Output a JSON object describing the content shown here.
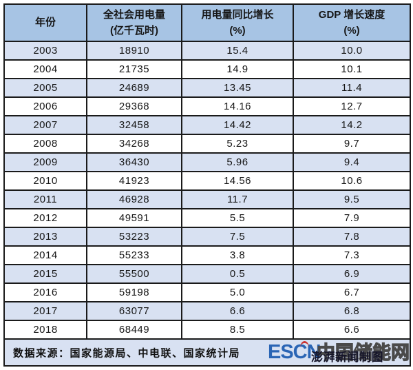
{
  "chart_data": {
    "type": "table",
    "title": "",
    "columns": [
      "年份",
      "全社会用电量(亿千瓦时)",
      "用电量同比增长(%)",
      "GDP 增长速度(%)"
    ],
    "categories": [
      2003,
      2004,
      2005,
      2006,
      2007,
      2008,
      2009,
      2010,
      2011,
      2012,
      2013,
      2014,
      2015,
      2016,
      2017,
      2018
    ],
    "series": [
      {
        "name": "全社会用电量(亿千瓦时)",
        "values": [
          18910,
          21735,
          24689,
          29368,
          32458,
          34268,
          36430,
          41923,
          46928,
          49591,
          53223,
          55233,
          55500,
          59198,
          63077,
          68449
        ]
      },
      {
        "name": "用电量同比增长(%)",
        "values": [
          15.4,
          14.9,
          13.45,
          14.16,
          14.42,
          5.23,
          5.96,
          14.56,
          11.7,
          5.5,
          7.5,
          3.8,
          0.5,
          5.0,
          6.6,
          8.5
        ]
      },
      {
        "name": "GDP 增长速度(%)",
        "values": [
          10.0,
          10.1,
          11.4,
          12.7,
          14.2,
          9.7,
          9.4,
          10.6,
          9.5,
          7.9,
          7.8,
          7.3,
          6.9,
          6.7,
          6.8,
          6.6
        ]
      }
    ],
    "source_note": "数据来源：国家能源局、中电联、国家统计局"
  },
  "table": {
    "headers": [
      [
        "年份"
      ],
      [
        "全社会用电量",
        "(亿千瓦时)"
      ],
      [
        "用电量同比增长",
        "(%)"
      ],
      [
        "GDP 增长速度",
        "(%)"
      ]
    ],
    "rows": [
      [
        "2003",
        "18910",
        "15.4",
        "10.0"
      ],
      [
        "2004",
        "21735",
        "14.9",
        "10.1"
      ],
      [
        "2005",
        "24689",
        "13.45",
        "11.4"
      ],
      [
        "2006",
        "29368",
        "14.16",
        "12.7"
      ],
      [
        "2007",
        "32458",
        "14.42",
        "14.2"
      ],
      [
        "2008",
        "34268",
        "5.23",
        "9.7"
      ],
      [
        "2009",
        "36430",
        "5.96",
        "9.4"
      ],
      [
        "2010",
        "41923",
        "14.56",
        "10.6"
      ],
      [
        "2011",
        "46928",
        "11.7",
        "9.5"
      ],
      [
        "2012",
        "49591",
        "5.5",
        "7.9"
      ],
      [
        "2013",
        "53223",
        "7.5",
        "7.8"
      ],
      [
        "2014",
        "55233",
        "3.8",
        "7.3"
      ],
      [
        "2015",
        "55500",
        "0.5",
        "6.9"
      ],
      [
        "2016",
        "59198",
        "5.0",
        "6.7"
      ],
      [
        "2017",
        "63077",
        "6.6",
        "6.8"
      ],
      [
        "2018",
        "68449",
        "8.5",
        "6.6"
      ]
    ]
  },
  "footer": {
    "source": "数据来源：国家能源局、中电联、国家统计局",
    "watermark": {
      "escn": "ESCN",
      "cn": "中国储能网",
      "credit": "澎湃新闻制图"
    }
  },
  "colors": {
    "header_bg": "#a7c4e4",
    "row_alt_bg": "#d8e1f2",
    "border": "#1a1a1a",
    "escn_blue": "#2a65b5",
    "escn_red": "#cc3333"
  }
}
